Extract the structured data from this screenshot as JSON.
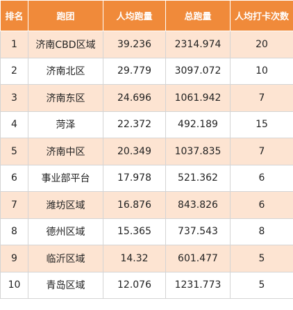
{
  "header": {
    "rank": "排名",
    "team": "跑团",
    "avg_distance": "人均跑量",
    "total_distance": "总跑量",
    "avg_checkins": "人均打卡次数"
  },
  "rows": [
    {
      "rank": "1",
      "team": "济南CBD区域",
      "avg_distance": "39.236",
      "total_distance": "2314.974",
      "avg_checkins": "20"
    },
    {
      "rank": "2",
      "team": "济南北区",
      "avg_distance": "29.779",
      "total_distance": "3097.072",
      "avg_checkins": "10"
    },
    {
      "rank": "3",
      "team": "济南东区",
      "avg_distance": "24.696",
      "total_distance": "1061.942",
      "avg_checkins": "7"
    },
    {
      "rank": "4",
      "team": "菏泽",
      "avg_distance": "22.372",
      "total_distance": "492.189",
      "avg_checkins": "15"
    },
    {
      "rank": "5",
      "team": "济南中区",
      "avg_distance": "20.349",
      "total_distance": "1037.835",
      "avg_checkins": "7"
    },
    {
      "rank": "6",
      "team": "事业部平台",
      "avg_distance": "17.978",
      "total_distance": "521.362",
      "avg_checkins": "6"
    },
    {
      "rank": "7",
      "team": "潍坊区域",
      "avg_distance": "16.876",
      "total_distance": "843.826",
      "avg_checkins": "6"
    },
    {
      "rank": "8",
      "team": "德州区域",
      "avg_distance": "15.365",
      "total_distance": "737.543",
      "avg_checkins": "8"
    },
    {
      "rank": "9",
      "team": "临沂区域",
      "avg_distance": "14.32",
      "total_distance": "601.477",
      "avg_checkins": "5"
    },
    {
      "rank": "10",
      "team": "青岛区域",
      "avg_distance": "12.076",
      "total_distance": "1231.773",
      "avg_checkins": "5"
    }
  ],
  "colors": {
    "header_bg": "#f08a3a",
    "header_text": "#ffffff",
    "row_odd_bg": "#fde4d2",
    "row_even_bg": "#ffffff"
  }
}
